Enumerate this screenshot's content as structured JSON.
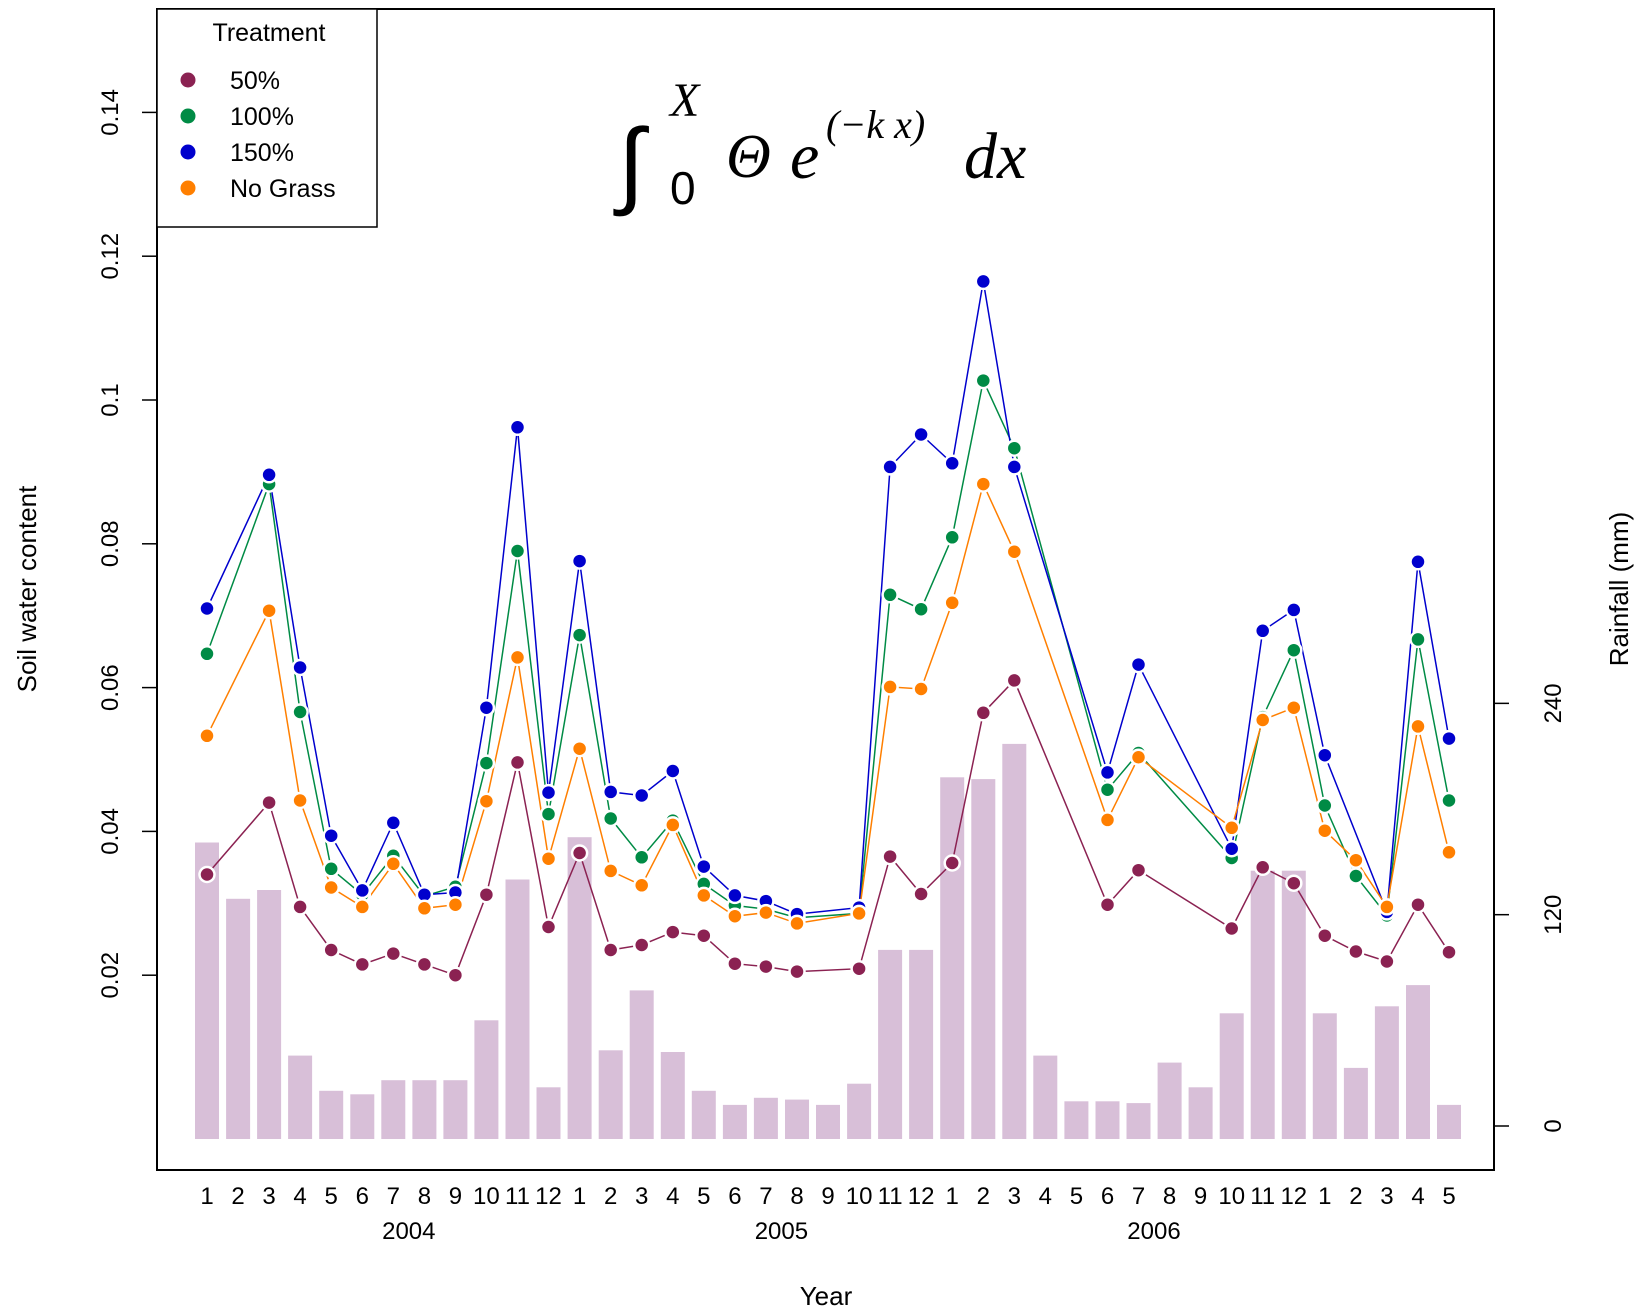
{
  "chart_data": {
    "type": "line",
    "title": "",
    "xlabel": "Year",
    "ylabel": "Soil water content",
    "y2label": "Rainfall (mm)",
    "ylim": [
      0,
      0.155
    ],
    "y2lim": [
      0,
      294
    ],
    "yticks": [
      0.02,
      0.04,
      0.06,
      0.08,
      0.1,
      0.12,
      0.14
    ],
    "yticklabels": [
      "0.02",
      "0.04",
      "0.06",
      "0.08",
      "0.1",
      "0.12",
      "0.14"
    ],
    "y2ticks": [
      0,
      120,
      240
    ],
    "y2ticklabels": [
      "0",
      "120",
      "240"
    ],
    "categories": [
      "1",
      "2",
      "3",
      "4",
      "5",
      "6",
      "7",
      "8",
      "9",
      "10",
      "11",
      "12",
      "1",
      "2",
      "3",
      "4",
      "5",
      "6",
      "7",
      "8",
      "9",
      "10",
      "11",
      "12",
      "1",
      "2",
      "3",
      "4",
      "5",
      "6",
      "7",
      "8",
      "9",
      "10",
      "11",
      "12",
      "1",
      "2",
      "3",
      "4",
      "5"
    ],
    "year_labels": [
      {
        "label": "2004",
        "index": 6.5
      },
      {
        "label": "2005",
        "index": 18.5
      },
      {
        "label": "2006",
        "index": 30.5
      }
    ],
    "legend": {
      "title": "Treatment",
      "position": "top-left",
      "entries": [
        {
          "label": "50%",
          "color": "#8b2252"
        },
        {
          "label": "100%",
          "color": "#008b45"
        },
        {
          "label": "150%",
          "color": "#0000cd"
        },
        {
          "label": "No Grass",
          "color": "#ff7f00"
        }
      ]
    },
    "annotation": {
      "integral_upper": "X",
      "integral_lower": "0",
      "theta": "Θ",
      "base": "e",
      "exponent": "(−k x)",
      "differential": "dx"
    },
    "rainfall": {
      "name": "Rainfall (mm)",
      "color": "#d8bfd8",
      "values": [
        161,
        129,
        134,
        40,
        20,
        18,
        26,
        26,
        26,
        60,
        140,
        22,
        164,
        43,
        77,
        42,
        20,
        12,
        16,
        15,
        12,
        24,
        100,
        100,
        198,
        197,
        217,
        40,
        14,
        14,
        13,
        36,
        22,
        64,
        145,
        145,
        64,
        33,
        68,
        80,
        12
      ]
    },
    "series": [
      {
        "name": "50%",
        "color": "#8b2252",
        "values": [
          0.034,
          null,
          0.044,
          0.0295,
          0.0235,
          0.0215,
          0.023,
          0.0215,
          0.02,
          0.0312,
          0.0496,
          0.0267,
          0.037,
          0.0235,
          0.0242,
          0.026,
          0.0255,
          0.0216,
          0.0212,
          0.0205,
          null,
          0.0209,
          0.0365,
          0.0313,
          0.0356,
          0.0565,
          0.061,
          null,
          null,
          0.0298,
          0.0346,
          null,
          null,
          0.0265,
          0.035,
          0.0328,
          0.0255,
          0.0233,
          0.0219,
          0.0298,
          0.0232
        ]
      },
      {
        "name": "100%",
        "color": "#008b45",
        "values": [
          0.0647,
          null,
          0.0883,
          0.0566,
          0.0348,
          0.0312,
          0.0366,
          0.031,
          0.0323,
          0.0495,
          0.079,
          0.0424,
          0.0673,
          0.0418,
          0.0364,
          0.0415,
          0.0327,
          0.0297,
          0.0292,
          0.028,
          null,
          0.0286,
          0.0729,
          0.0709,
          0.0809,
          0.1027,
          0.0933,
          null,
          null,
          0.0458,
          0.0509,
          null,
          null,
          0.0363,
          0.0559,
          0.0652,
          0.0436,
          0.0338,
          0.0283,
          0.0667,
          0.0443
        ]
      },
      {
        "name": "150%",
        "color": "#0000cd",
        "values": [
          0.071,
          null,
          0.0896,
          0.0628,
          0.0394,
          0.0318,
          0.0412,
          0.0312,
          0.0315,
          0.0572,
          0.0962,
          0.0454,
          0.0776,
          0.0455,
          0.045,
          0.0484,
          0.0351,
          0.0311,
          0.0303,
          0.0285,
          null,
          0.0294,
          0.0907,
          0.0952,
          0.0912,
          0.1165,
          0.0907,
          null,
          null,
          0.0482,
          0.0632,
          null,
          null,
          0.0376,
          0.0679,
          0.0708,
          0.0506,
          null,
          0.0288,
          0.0775,
          0.0529
        ]
      },
      {
        "name": "No Grass",
        "color": "#ff7f00",
        "values": [
          0.0533,
          null,
          0.0707,
          0.0443,
          0.0322,
          0.0295,
          0.0355,
          0.0293,
          0.0298,
          0.0442,
          0.0642,
          0.0362,
          0.0515,
          0.0345,
          0.0325,
          0.0409,
          0.0311,
          0.0282,
          0.0287,
          0.0272,
          null,
          0.0286,
          0.0601,
          0.0598,
          0.0718,
          0.0883,
          0.0789,
          null,
          null,
          0.0416,
          0.0503,
          null,
          null,
          0.0405,
          0.0555,
          0.0572,
          0.0401,
          0.036,
          0.0295,
          0.0546,
          0.0371
        ]
      }
    ]
  }
}
